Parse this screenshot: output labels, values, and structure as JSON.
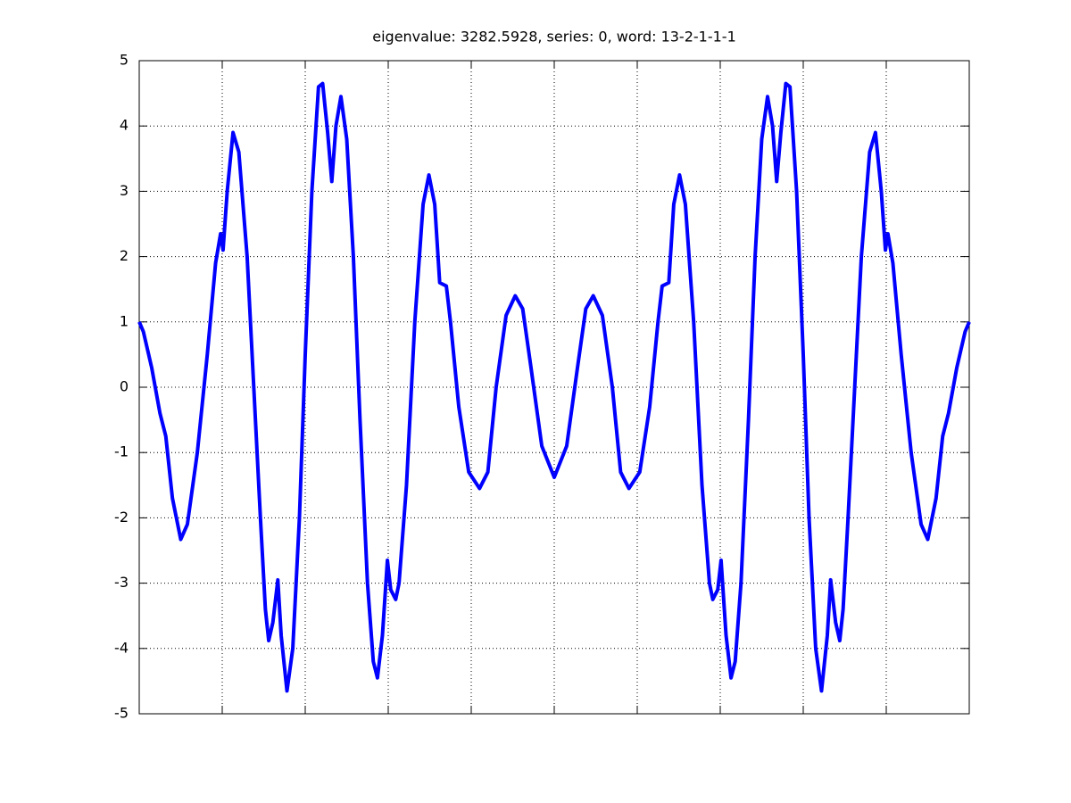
{
  "chart_data": {
    "type": "line",
    "title": "eigenvalue: 3282.5928, series: 0, word: 13-2-1-1-1",
    "xlim": [
      0,
      10
    ],
    "xticks": [
      0,
      1,
      2,
      3,
      4,
      5,
      6,
      7,
      8,
      9,
      10
    ],
    "ylim": [
      -5,
      5
    ],
    "yticks": [
      -5,
      -4,
      -3,
      -2,
      -1,
      0,
      1,
      2,
      3,
      4,
      5
    ],
    "grid": true,
    "series": [
      {
        "color": "#0000ff",
        "x": [
          0,
          0.05,
          0.15,
          0.25,
          0.32,
          0.4,
          0.5,
          0.58,
          0.7,
          0.82,
          0.92,
          0.98,
          1.01,
          1.06,
          1.13,
          1.2,
          1.3,
          1.38,
          1.46,
          1.52,
          1.56,
          1.61,
          1.67,
          1.71,
          1.78,
          1.85,
          1.93,
          2.0,
          2.08,
          2.16,
          2.21,
          2.27,
          2.32,
          2.37,
          2.43,
          2.5,
          2.58,
          2.66,
          2.75,
          2.82,
          2.87,
          2.93,
          2.99,
          3.03,
          3.09,
          3.13,
          3.22,
          3.32,
          3.42,
          3.49,
          3.56,
          3.62,
          3.7,
          3.75,
          3.85,
          3.97,
          4.1,
          4.2,
          4.3,
          4.42,
          4.53,
          4.62,
          4.72,
          4.85,
          5.0,
          5.15,
          5.28,
          5.38,
          5.47,
          5.58,
          5.7,
          5.8,
          5.9,
          6.03,
          6.15,
          6.25,
          6.3,
          6.38,
          6.44,
          6.51,
          6.58,
          6.68,
          6.78,
          6.87,
          6.91,
          6.97,
          7.01,
          7.07,
          7.13,
          7.18,
          7.25,
          7.34,
          7.42,
          7.5,
          7.57,
          7.63,
          7.68,
          7.73,
          7.79,
          7.84,
          7.92,
          8.0,
          8.07,
          8.15,
          8.22,
          8.29,
          8.33,
          8.39,
          8.44,
          8.48,
          8.54,
          8.62,
          8.7,
          8.8,
          8.87,
          8.94,
          8.99,
          9.02,
          9.08,
          9.18,
          9.3,
          9.42,
          9.5,
          9.6,
          9.68,
          9.75,
          9.85,
          9.95,
          10
        ],
        "values": [
          1.0,
          0.85,
          0.3,
          -0.4,
          -0.75,
          -1.7,
          -2.33,
          -2.1,
          -1.0,
          0.5,
          1.9,
          2.35,
          2.1,
          3.0,
          3.9,
          3.6,
          2.0,
          0.0,
          -2.0,
          -3.4,
          -3.88,
          -3.6,
          -2.95,
          -3.8,
          -4.65,
          -4.0,
          -2.0,
          0.5,
          3.0,
          4.6,
          4.65,
          3.9,
          3.15,
          4.0,
          4.45,
          3.8,
          2.0,
          -0.5,
          -3.0,
          -4.2,
          -4.45,
          -3.8,
          -2.65,
          -3.1,
          -3.25,
          -3.0,
          -1.5,
          1.0,
          2.8,
          3.25,
          2.8,
          1.6,
          1.55,
          1.0,
          -0.3,
          -1.3,
          -1.55,
          -1.3,
          0.0,
          1.1,
          1.4,
          1.2,
          0.3,
          -0.9,
          -1.38,
          -0.9,
          0.3,
          1.2,
          1.4,
          1.1,
          0.0,
          -1.3,
          -1.55,
          -1.3,
          -0.3,
          1.0,
          1.55,
          1.6,
          2.8,
          3.25,
          2.8,
          1.0,
          -1.5,
          -3.0,
          -3.25,
          -3.1,
          -2.65,
          -3.8,
          -4.45,
          -4.2,
          -3.0,
          -0.5,
          2.0,
          3.8,
          4.45,
          4.0,
          3.15,
          3.9,
          4.65,
          4.6,
          3.0,
          0.5,
          -2.0,
          -4.0,
          -4.65,
          -3.8,
          -2.95,
          -3.6,
          -3.88,
          -3.4,
          -2.0,
          0.0,
          2.0,
          3.6,
          3.9,
          3.0,
          2.1,
          2.35,
          1.9,
          0.5,
          -1.0,
          -2.1,
          -2.33,
          -1.7,
          -0.75,
          -0.4,
          0.3,
          0.85,
          1.0
        ]
      }
    ]
  }
}
